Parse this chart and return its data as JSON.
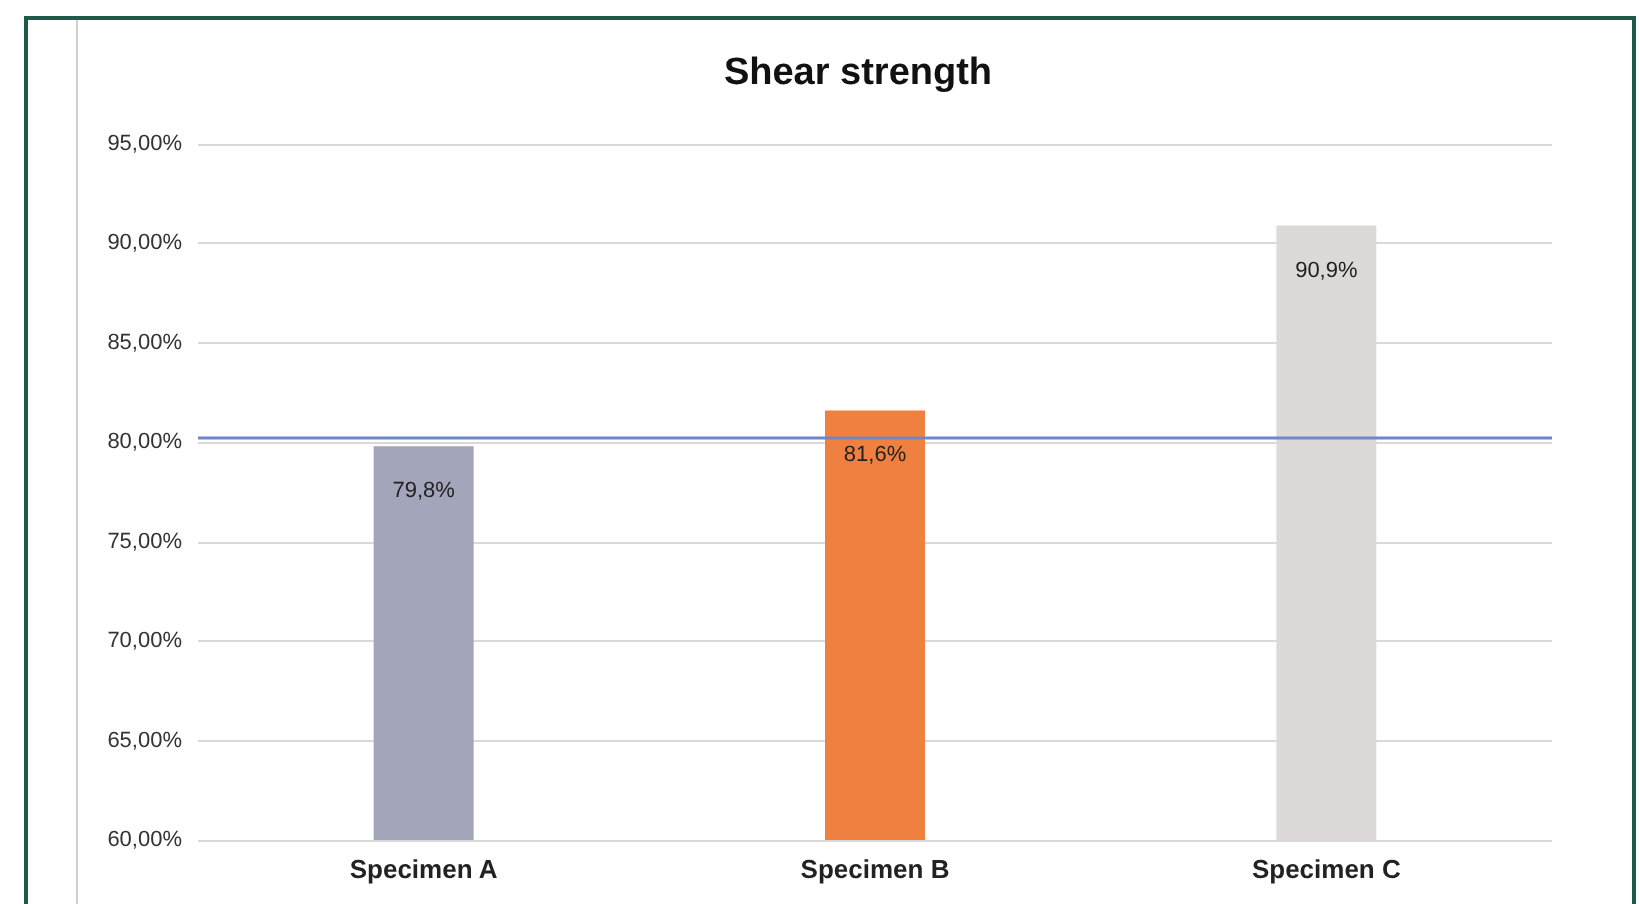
{
  "chart_data": {
    "type": "bar",
    "title": "Shear strength",
    "categories": [
      "Specimen A",
      "Specimen B",
      "Specimen C"
    ],
    "values": [
      79.8,
      81.6,
      90.9
    ],
    "colors": [
      "#a3a5bb",
      "#f08040",
      "#ddd9d9"
    ],
    "value_labels": [
      "79,8%",
      "81,6%",
      "90,9%"
    ],
    "ylim": [
      60,
      95
    ],
    "yticks": [
      {
        "value": 60,
        "label": "60,00%"
      },
      {
        "value": 65,
        "label": "65,00%"
      },
      {
        "value": 70,
        "label": "70,00%"
      },
      {
        "value": 75,
        "label": "75,00%"
      },
      {
        "value": 80,
        "label": "80,00%"
      },
      {
        "value": 85,
        "label": "85,00%"
      },
      {
        "value": 90,
        "label": "90,00%"
      },
      {
        "value": 95,
        "label": "95,00%"
      }
    ],
    "ref_lines": [
      {
        "axis": "y",
        "value": 80.2,
        "color": "#6f86c8"
      }
    ],
    "grid": "y"
  }
}
